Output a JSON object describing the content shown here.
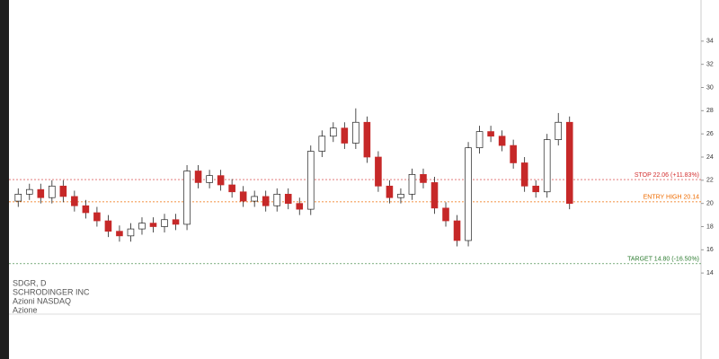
{
  "chart_data": {
    "type": "candlestick",
    "symbol": "SDGR, D",
    "company": "SCHRODINGER INC",
    "exchange": "Azioni NASDAQ",
    "asset_type": "Azione",
    "open": [
      20.2,
      20.8,
      21.2,
      20.5,
      21.5,
      20.6,
      19.8,
      19.2,
      18.5,
      17.6,
      17.2,
      17.8,
      18.3,
      18.0,
      18.6,
      18.2,
      22.8,
      21.8,
      22.4,
      21.6,
      21.0,
      20.2,
      20.6,
      19.8,
      20.8,
      20.0,
      19.5,
      24.5,
      25.8,
      26.5,
      25.2,
      27.0,
      24.0,
      21.5,
      20.5,
      20.8,
      22.5,
      21.8,
      19.6,
      18.5,
      16.8,
      24.8,
      26.2,
      25.8,
      25.0,
      23.5,
      21.5,
      21.0,
      25.5,
      27.0
    ],
    "high": [
      21.3,
      21.7,
      21.7,
      22.0,
      22.0,
      21.1,
      20.3,
      19.7,
      19.0,
      18.1,
      18.3,
      18.8,
      18.8,
      19.1,
      19.1,
      23.3,
      23.3,
      22.9,
      22.9,
      22.1,
      21.5,
      21.1,
      21.1,
      21.3,
      21.3,
      20.5,
      25.0,
      26.3,
      27.0,
      27.0,
      28.2,
      27.5,
      24.5,
      22.0,
      21.3,
      23.0,
      23.0,
      22.3,
      20.1,
      19.0,
      25.3,
      26.7,
      26.7,
      26.3,
      25.5,
      24.0,
      22.0,
      26.0,
      27.8,
      27.5
    ],
    "low": [
      19.7,
      20.3,
      20.0,
      20.0,
      20.1,
      19.3,
      18.7,
      18.0,
      17.1,
      16.7,
      16.7,
      17.3,
      17.5,
      17.5,
      17.7,
      17.7,
      21.3,
      21.3,
      21.1,
      20.5,
      19.7,
      19.7,
      19.3,
      19.3,
      19.5,
      19.0,
      19.0,
      24.0,
      25.3,
      24.7,
      24.7,
      23.5,
      21.0,
      20.0,
      20.0,
      20.3,
      21.3,
      19.1,
      18.0,
      16.3,
      16.3,
      24.3,
      25.3,
      24.5,
      23.0,
      21.0,
      20.5,
      20.5,
      25.0,
      19.5
    ],
    "close": [
      20.8,
      21.2,
      20.5,
      21.5,
      20.6,
      19.8,
      19.2,
      18.5,
      17.6,
      17.2,
      17.8,
      18.3,
      18.0,
      18.6,
      18.2,
      22.8,
      21.8,
      22.4,
      21.6,
      21.0,
      20.2,
      20.6,
      19.8,
      20.8,
      20.0,
      19.5,
      24.5,
      25.8,
      26.5,
      25.2,
      27.0,
      24.0,
      21.5,
      20.5,
      20.8,
      22.5,
      21.8,
      19.6,
      18.5,
      16.8,
      24.8,
      26.2,
      25.8,
      25.0,
      23.5,
      21.5,
      21.0,
      25.5,
      27.0,
      20.0
    ],
    "up_color": "#ffffff",
    "down_color": "#c62828",
    "wick_color": "#222222",
    "levels": [
      {
        "label": "STOP 22.06 (+11.83%)",
        "value": 22.06,
        "color": "#d32f2f"
      },
      {
        "label": "ENTRY HIGH 20.14",
        "value": 20.14,
        "color": "#ef6c00"
      },
      {
        "label": "TARGET 14.80 (-16.50%)",
        "value": 14.8,
        "color": "#2e7d32"
      }
    ],
    "ylim": [
      12,
      36
    ],
    "yticks": [
      14,
      16,
      18,
      20,
      22,
      24,
      26,
      28,
      30,
      32,
      34
    ]
  }
}
